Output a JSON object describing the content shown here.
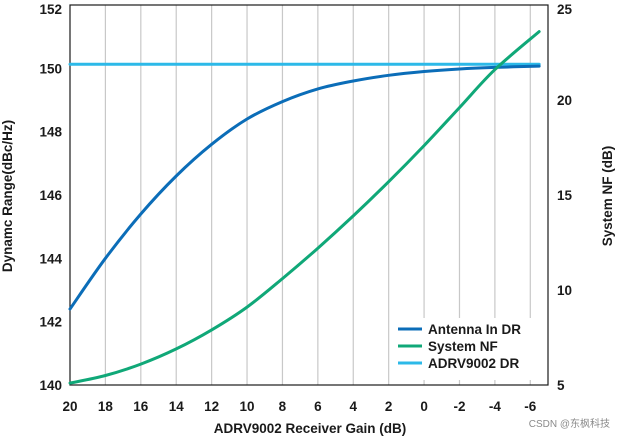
{
  "chart_data": {
    "type": "line",
    "xlabel": "ADRV9002 Receiver Gain (dB)",
    "ylabel_left": "Dynamc Range(dBc/Hz)",
    "ylabel_right": "System NF (dB)",
    "x_reversed": true,
    "xlim": [
      20,
      -7
    ],
    "ylim_left": [
      140,
      152
    ],
    "ylim_right": [
      5,
      25
    ],
    "x_ticks": [
      20,
      18,
      16,
      14,
      12,
      10,
      8,
      6,
      4,
      2,
      0,
      -2,
      -4,
      -6
    ],
    "x_tick_labels": [
      "20",
      "18",
      "16",
      "14",
      "12",
      "10",
      "8",
      "6",
      "4",
      "2",
      "0",
      "-2",
      "-4",
      "-6"
    ],
    "y_ticks_left": [
      140,
      142,
      144,
      146,
      148,
      150,
      152
    ],
    "y_tick_labels_left": [
      "140",
      "142",
      "144",
      "146",
      "148",
      "150",
      "152"
    ],
    "y_ticks_right": [
      5,
      10,
      15,
      20,
      25
    ],
    "y_tick_labels_right": [
      "5",
      "10",
      "15",
      "20",
      "25"
    ],
    "grid": "vertical",
    "legend_position": "bottom-right",
    "series": [
      {
        "name": "Antenna In DR",
        "axis": "left",
        "color": "#0b6db8",
        "x": [
          20,
          18,
          16,
          14,
          12,
          10,
          8,
          6,
          4,
          2,
          0,
          -2,
          -4,
          -6.5
        ],
        "y": [
          142.4,
          144.0,
          145.4,
          146.6,
          147.6,
          148.4,
          148.95,
          149.35,
          149.6,
          149.78,
          149.9,
          149.98,
          150.03,
          150.07
        ]
      },
      {
        "name": "System NF",
        "axis": "right",
        "color": "#10a878",
        "x": [
          20,
          18,
          16,
          14,
          12,
          10,
          8,
          6,
          4,
          2,
          0,
          -2,
          -4,
          -6.5
        ],
        "y": [
          5.1,
          5.5,
          6.1,
          6.9,
          7.9,
          9.1,
          10.6,
          12.2,
          13.9,
          15.7,
          17.6,
          19.6,
          21.6,
          23.6
        ]
      },
      {
        "name": "ADRV9002 DR",
        "axis": "left",
        "color": "#2cb9e8",
        "x": [
          20,
          -6.5
        ],
        "y": [
          150.13,
          150.13
        ]
      }
    ]
  },
  "watermark": "CSDN @东枫科技"
}
